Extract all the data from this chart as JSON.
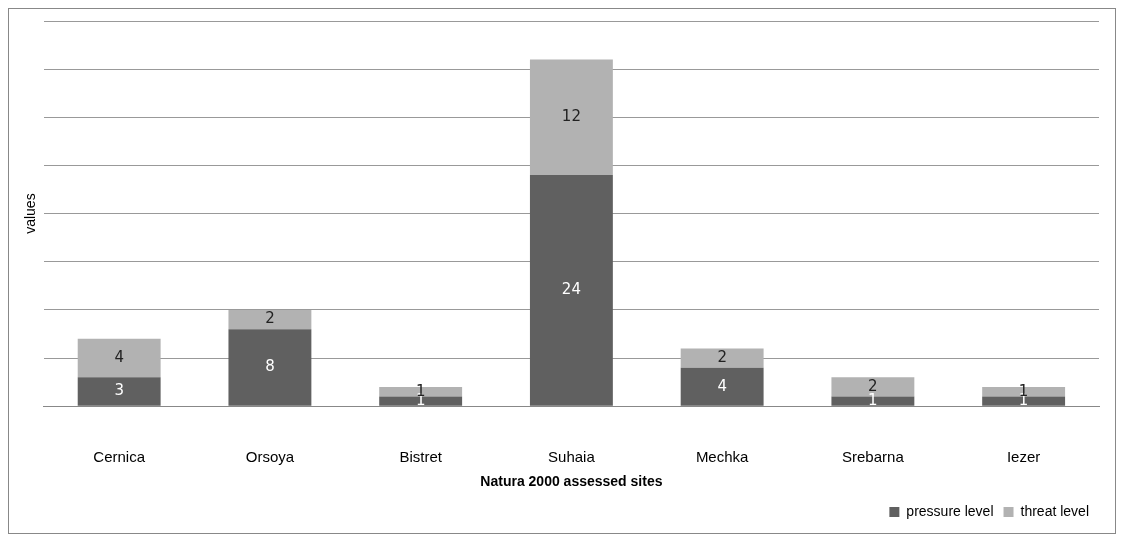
{
  "chart_data": {
    "type": "bar",
    "xlabel": "Natura 2000 assessed sites",
    "ylabel": "values",
    "categories": [
      "Cernica",
      "Orsoya",
      "Bistret",
      "Suhaia",
      "Mechka",
      "Srebarna",
      "Iezer"
    ],
    "series": [
      {
        "name": "pressure level",
        "color": "#606060",
        "values": [
          3,
          8,
          1,
          24,
          4,
          1,
          1
        ]
      },
      {
        "name": "threat level",
        "color": "#b2b2b2",
        "values": [
          4,
          2,
          1,
          12,
          2,
          2,
          1
        ]
      }
    ],
    "stacked": true,
    "data_labels": true,
    "ylim": [
      0,
      40
    ],
    "yticks": [
      {
        "value": 0,
        "label": null
      },
      {
        "value": 5,
        "label": null
      },
      {
        "value": 10,
        "label": null
      },
      {
        "value": 15,
        "label": null
      },
      {
        "value": 20,
        "label": null
      },
      {
        "value": 25,
        "label": null
      },
      {
        "value": 30,
        "label": null
      },
      {
        "value": 35,
        "label": null
      },
      {
        "value": 40,
        "label": null
      }
    ],
    "grid": "y",
    "tick_labels": "x",
    "legend": "bottom right"
  }
}
